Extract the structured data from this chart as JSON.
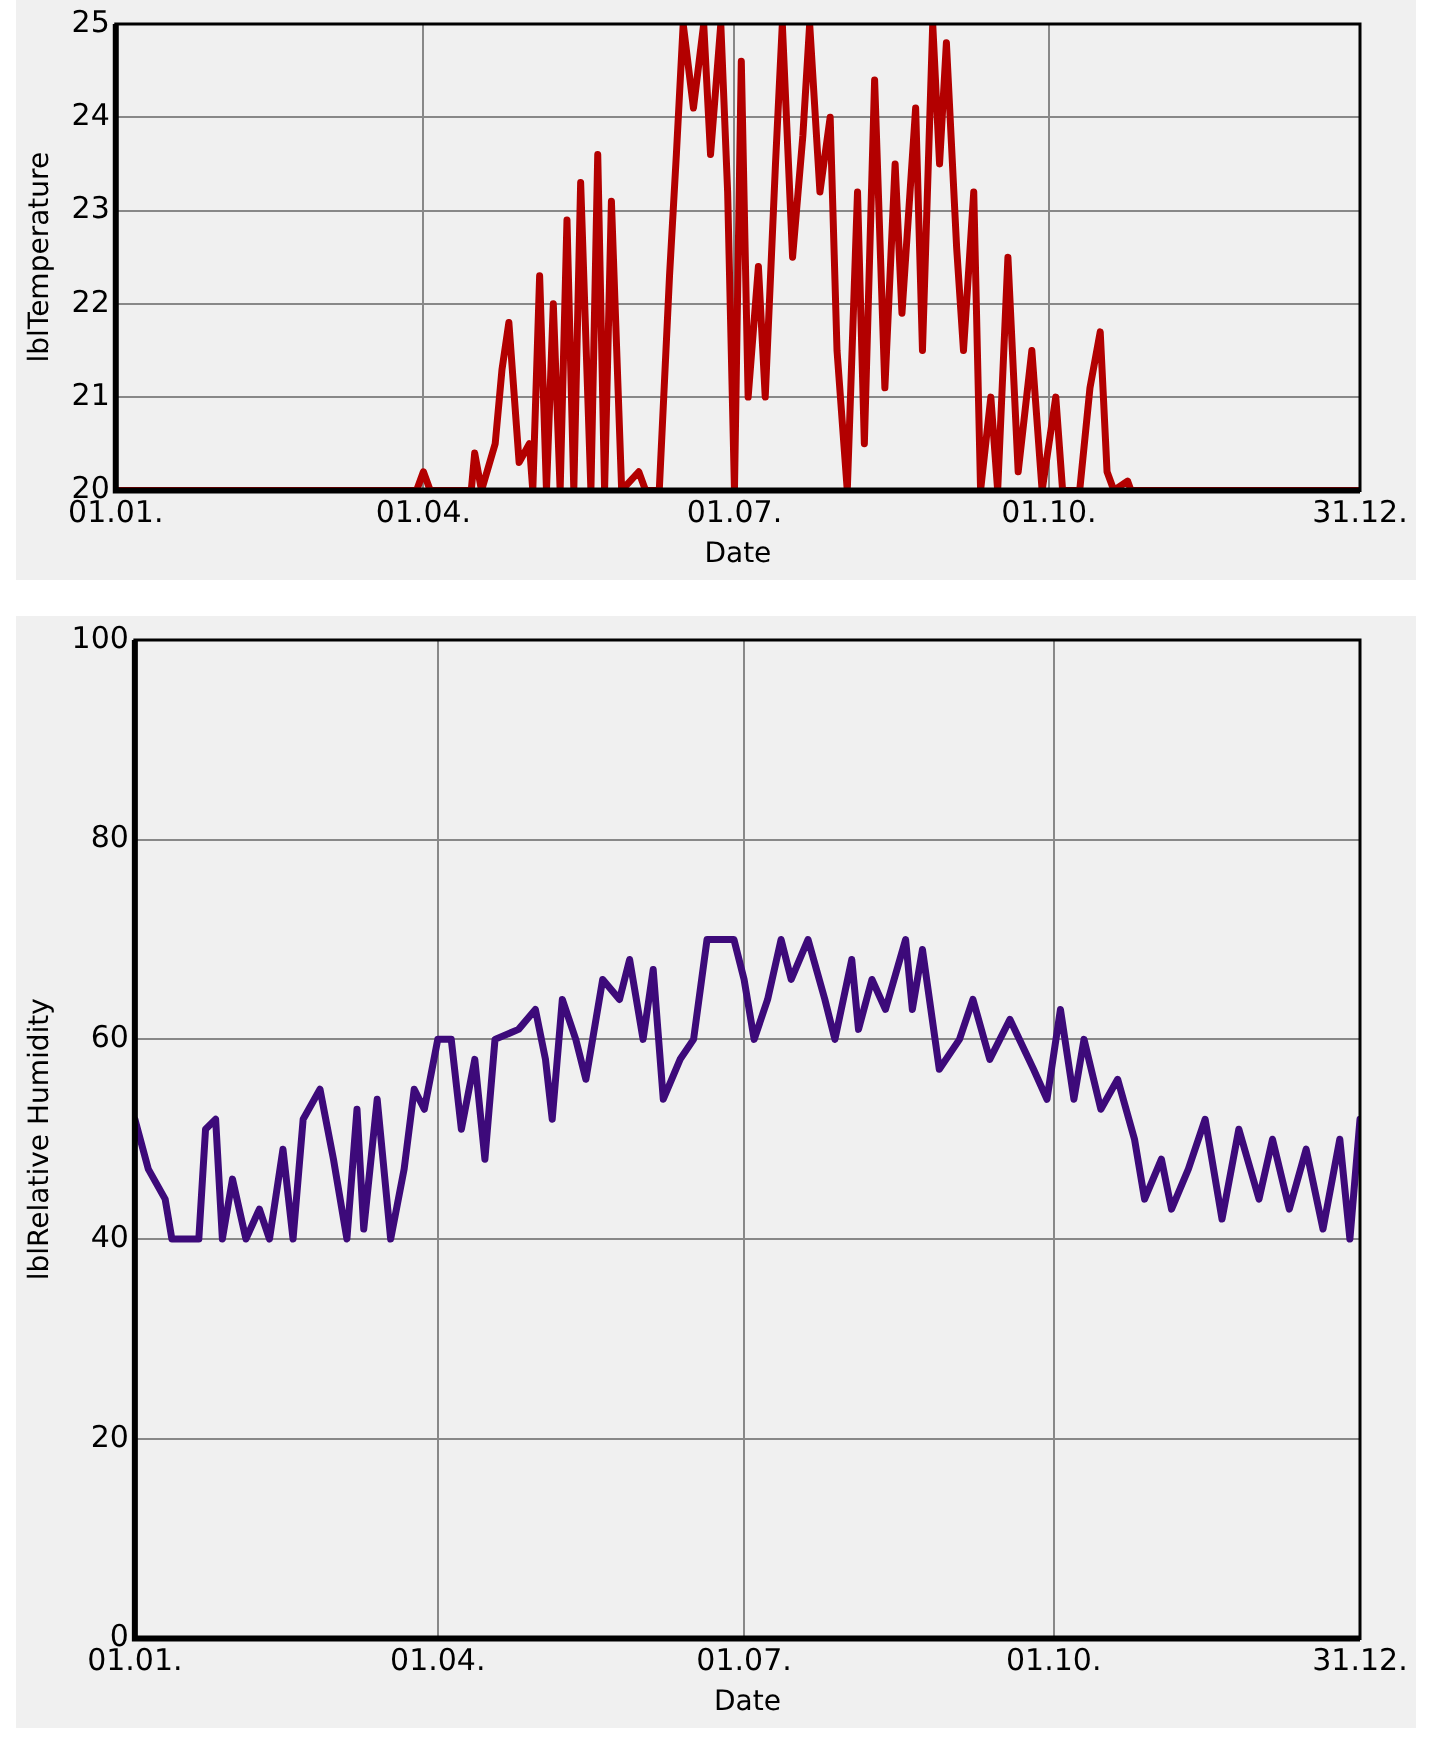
{
  "chart_data": [
    {
      "type": "line",
      "xlabel": "Date",
      "ylabel": "lblTemperature",
      "xlim": [
        "--01-01",
        "--12-31"
      ],
      "xticks": [
        {
          "value": "--01-01",
          "label": "01.01."
        },
        {
          "value": "--04-01",
          "label": "01.04."
        },
        {
          "value": "--07-01",
          "label": "01.07."
        },
        {
          "value": "--10-01",
          "label": "01.10."
        },
        {
          "value": "--12-31",
          "label": "31.12."
        }
      ],
      "ylim": [
        20,
        25
      ],
      "yticks": [
        20,
        21,
        22,
        23,
        24,
        25
      ],
      "grid": true,
      "legend": false,
      "marker": "none",
      "line_style": "solid",
      "x": [
        "--01-01",
        "--03-30",
        "--04-01",
        "--04-03",
        "--04-15",
        "--04-16",
        "--04-18",
        "--04-22",
        "--04-24",
        "--04-26",
        "--04-29",
        "--05-02",
        "--05-03",
        "--05-05",
        "--05-07",
        "--05-09",
        "--05-11",
        "--05-13",
        "--05-15",
        "--05-17",
        "--05-20",
        "--05-22",
        "--05-24",
        "--05-26",
        "--05-29",
        "--06-03",
        "--06-05",
        "--06-09",
        "--06-12",
        "--06-14",
        "--06-16",
        "--06-19",
        "--06-22",
        "--06-24",
        "--06-27",
        "--06-29",
        "--07-01",
        "--07-03",
        "--07-05",
        "--07-08",
        "--07-10",
        "--07-13",
        "--07-15",
        "--07-18",
        "--07-21",
        "--07-23",
        "--07-26",
        "--07-29",
        "--07-31",
        "--08-03",
        "--08-06",
        "--08-08",
        "--08-11",
        "--08-14",
        "--08-17",
        "--08-19",
        "--08-23",
        "--08-25",
        "--08-28",
        "--08-30",
        "--09-01",
        "--09-04",
        "--09-06",
        "--09-09",
        "--09-11",
        "--09-14",
        "--09-16",
        "--09-19",
        "--09-22",
        "--09-26",
        "--09-29",
        "--10-03",
        "--10-05",
        "--10-10",
        "--10-13",
        "--10-16",
        "--10-18",
        "--10-20",
        "--10-24",
        "--10-25",
        "--12-31"
      ],
      "series": [
        {
          "color": "#b30000",
          "values": [
            20,
            20,
            20.2,
            20,
            20,
            20.4,
            20,
            20.5,
            21.3,
            21.8,
            20.3,
            20.5,
            20,
            22.3,
            20,
            22,
            20,
            22.9,
            20,
            23.3,
            20,
            23.6,
            20,
            23.1,
            20,
            20.2,
            20,
            20,
            22.3,
            23.6,
            25,
            24.1,
            25,
            23.6,
            25,
            23.2,
            20,
            24.6,
            21,
            22.4,
            21,
            23.5,
            25,
            22.5,
            23.8,
            25,
            23.2,
            24,
            21.5,
            20,
            23.2,
            20.5,
            24.4,
            21.1,
            23.5,
            21.9,
            24.1,
            21.5,
            25,
            23.5,
            24.8,
            22.6,
            21.5,
            23.2,
            20,
            21,
            20,
            22.5,
            20.2,
            21.5,
            20,
            21,
            20,
            20,
            21.1,
            21.7,
            20.2,
            20,
            20.1,
            20,
            20
          ]
        }
      ]
    },
    {
      "type": "line",
      "xlabel": "Date",
      "ylabel": "lblRelative Humidity",
      "xlim": [
        "--01-01",
        "--12-31"
      ],
      "xticks": [
        {
          "value": "--01-01",
          "label": "01.01."
        },
        {
          "value": "--04-01",
          "label": "01.04."
        },
        {
          "value": "--07-01",
          "label": "01.07."
        },
        {
          "value": "--10-01",
          "label": "01.10."
        },
        {
          "value": "--12-31",
          "label": "31.12."
        }
      ],
      "ylim": [
        0,
        100
      ],
      "yticks": [
        0,
        20,
        40,
        60,
        80,
        100
      ],
      "grid": true,
      "legend": false,
      "marker": "none",
      "line_style": "solid",
      "x": [
        "--01-01",
        "--01-05",
        "--01-10",
        "--01-12",
        "--01-20",
        "--01-22",
        "--01-25",
        "--01-27",
        "--01-30",
        "--02-03",
        "--02-07",
        "--02-10",
        "--02-14",
        "--02-17",
        "--02-20",
        "--02-25",
        "--03-01",
        "--03-05",
        "--03-08",
        "--03-10",
        "--03-14",
        "--03-18",
        "--03-22",
        "--03-25",
        "--03-28",
        "--04-01",
        "--04-05",
        "--04-08",
        "--04-12",
        "--04-15",
        "--04-18",
        "--04-25",
        "--04-30",
        "--05-03",
        "--05-05",
        "--05-08",
        "--05-12",
        "--05-15",
        "--05-20",
        "--05-25",
        "--05-28",
        "--06-01",
        "--06-04",
        "--06-07",
        "--06-12",
        "--06-16",
        "--06-20",
        "--06-28",
        "--07-01",
        "--07-04",
        "--07-08",
        "--07-12",
        "--07-15",
        "--07-20",
        "--07-25",
        "--07-28",
        "--08-02",
        "--08-04",
        "--08-08",
        "--08-12",
        "--08-18",
        "--08-20",
        "--08-23",
        "--08-28",
        "--09-03",
        "--09-07",
        "--09-12",
        "--09-18",
        "--09-25",
        "--09-29",
        "--10-03",
        "--10-07",
        "--10-10",
        "--10-15",
        "--10-20",
        "--10-25",
        "--10-28",
        "--11-02",
        "--11-05",
        "--11-10",
        "--11-15",
        "--11-20",
        "--11-25",
        "--12-01",
        "--12-05",
        "--12-10",
        "--12-15",
        "--12-20",
        "--12-25",
        "--12-28",
        "--12-31"
      ],
      "series": [
        {
          "color": "#3d0a7a",
          "values": [
            52,
            47,
            44,
            40,
            40,
            51,
            52,
            40,
            46,
            40,
            43,
            40,
            49,
            40,
            52,
            55,
            48,
            40,
            53,
            41,
            54,
            40,
            47,
            55,
            53,
            60,
            60,
            51,
            58,
            48,
            60,
            61,
            63,
            58,
            52,
            64,
            60,
            56,
            66,
            64,
            68,
            60,
            67,
            54,
            58,
            60,
            70,
            70,
            66,
            60,
            64,
            70,
            66,
            70,
            64,
            60,
            68,
            61,
            66,
            63,
            70,
            63,
            69,
            57,
            60,
            64,
            58,
            62,
            57,
            54,
            63,
            54,
            60,
            53,
            56,
            50,
            44,
            48,
            43,
            47,
            52,
            42,
            51,
            44,
            50,
            43,
            49,
            41,
            50,
            40,
            52
          ]
        }
      ]
    }
  ]
}
